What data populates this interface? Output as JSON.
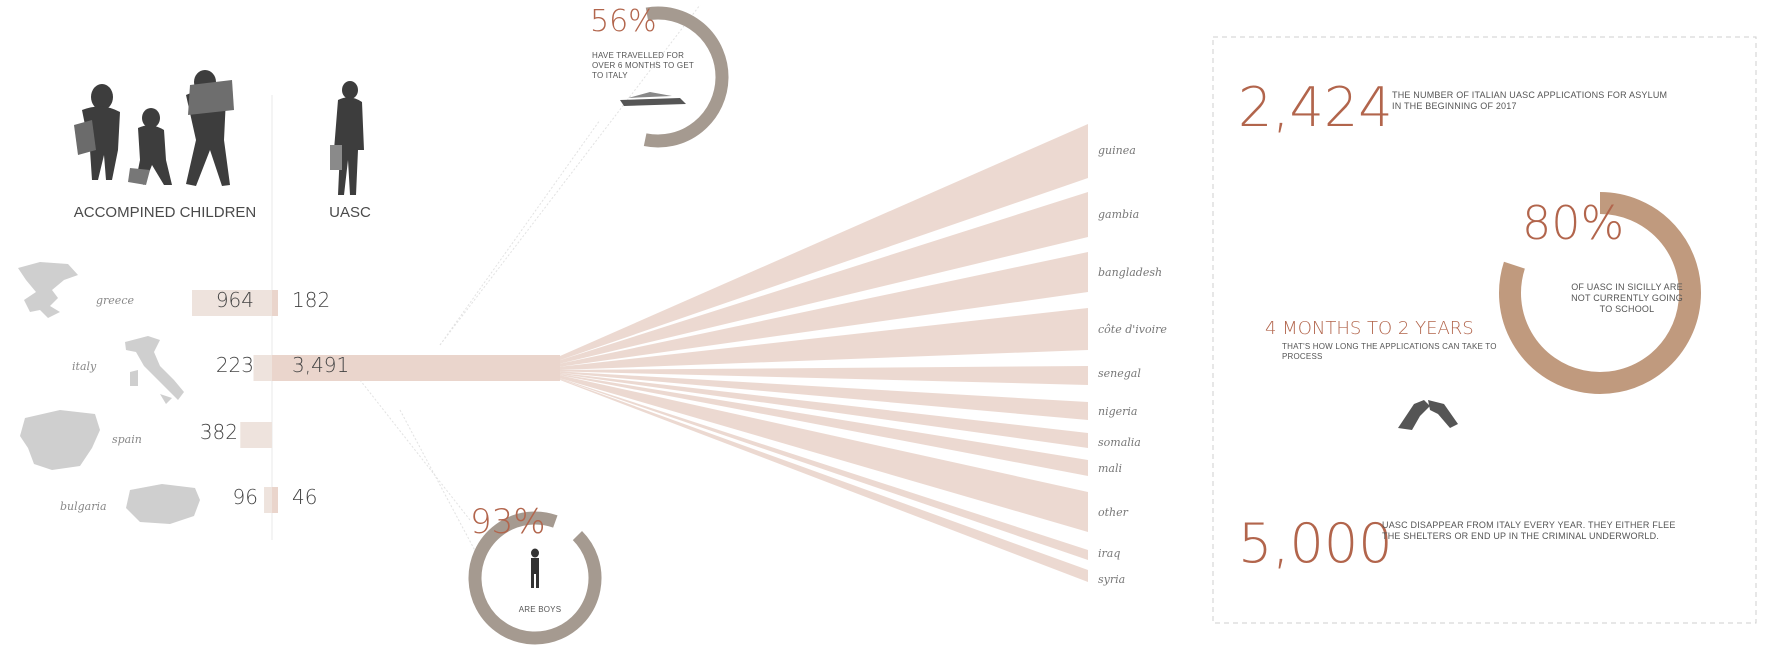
{
  "columns": {
    "accompanied": "ACCOMPINED CHILDREN",
    "uasc": "UASC"
  },
  "countries": [
    {
      "name": "greece",
      "accompanied": "964",
      "uasc": "182"
    },
    {
      "name": "italy",
      "accompanied": "223",
      "uasc": "3,491"
    },
    {
      "name": "spain",
      "accompanied": "382",
      "uasc": ""
    },
    {
      "name": "bulgaria",
      "accompanied": "96",
      "uasc": "46"
    }
  ],
  "donut_travel": {
    "value": "56%",
    "text": "HAVE TRAVELLED FOR OVER 6 MONTHS TO GET TO ITALY",
    "percent": 56
  },
  "donut_boys": {
    "value": "93%",
    "text": "ARE BOYS",
    "percent": 93
  },
  "destinations": [
    "guinea",
    "gambia",
    "bangladesh",
    "côte d'ivoire",
    "senegal",
    "nigeria",
    "somalia",
    "mali",
    "other",
    "iraq",
    "syria"
  ],
  "panel": {
    "stat1": {
      "value": "2,424",
      "text": "THE NUMBER OF ITALIAN UASC APPLICATIONS FOR ASYLUM IN THE BEGINNING OF 2017"
    },
    "stat2": {
      "value": "80%",
      "text": "OF UASC IN SICILLY ARE NOT CURRENTLY GOING TO SCHOOL",
      "percent": 80
    },
    "stat3": {
      "value": "4 MONTHS TO 2 YEARS",
      "text": "THAT'S HOW LONG THE APPLICATIONS CAN TAKE TO PROCESS"
    },
    "stat4": {
      "value": "5,000",
      "text": "UASC DISAPPEAR FROM ITALY EVERY YEAR. THEY EITHER FLEE THE SHELTERS OR END UP IN THE CRIMINAL UNDERWORLD."
    }
  },
  "colors": {
    "accent": "#b2654c",
    "donut_gray": "#a59a90",
    "donut_tan": "#c09a7e",
    "flow": "#ead5cc",
    "bar": "#eee3dd"
  },
  "chart_data": {
    "type": "bar",
    "categories": [
      "greece",
      "italy",
      "spain",
      "bulgaria"
    ],
    "series": [
      {
        "name": "ACCOMPINED CHILDREN",
        "values": [
          964,
          223,
          382,
          96
        ]
      },
      {
        "name": "UASC",
        "values": [
          182,
          3491,
          0,
          46
        ]
      }
    ]
  }
}
